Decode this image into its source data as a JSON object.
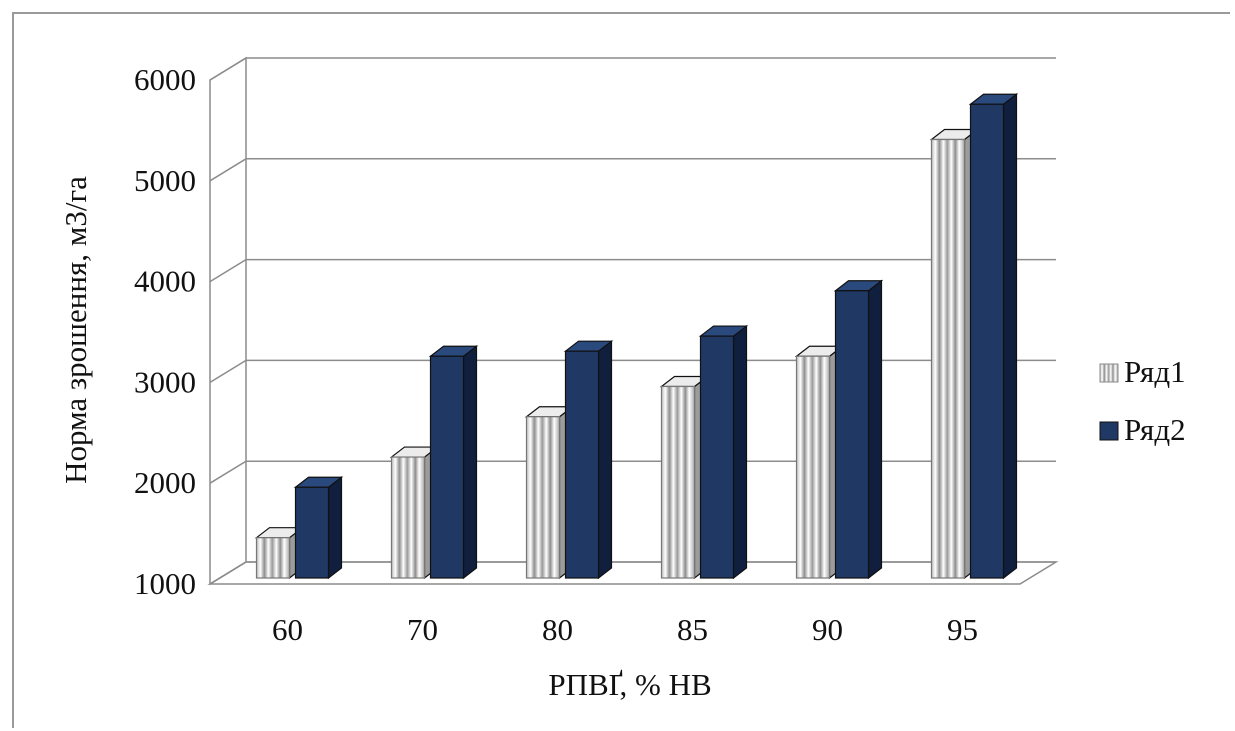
{
  "chart_data": {
    "type": "bar",
    "style": "3d-clustered-column",
    "categories": [
      "60",
      "70",
      "80",
      "85",
      "90",
      "95"
    ],
    "series": [
      {
        "name": "Ряд1",
        "values": [
          1400,
          2200,
          2600,
          2900,
          3200,
          5350
        ],
        "color": "#d9d9d9",
        "pattern": "vertical-stripes"
      },
      {
        "name": "Ряд2",
        "values": [
          1900,
          3200,
          3250,
          3400,
          3850,
          5700
        ],
        "color": "#1f3864"
      }
    ],
    "title": "",
    "xlabel": "РПВҐ, % НВ",
    "ylabel": "Норма  зрошення, м3/га",
    "ylim": [
      1000,
      6000
    ],
    "yticks": [
      "1000",
      "2000",
      "3000",
      "4000",
      "5000",
      "6000"
    ],
    "grid": true,
    "legend": "right"
  }
}
